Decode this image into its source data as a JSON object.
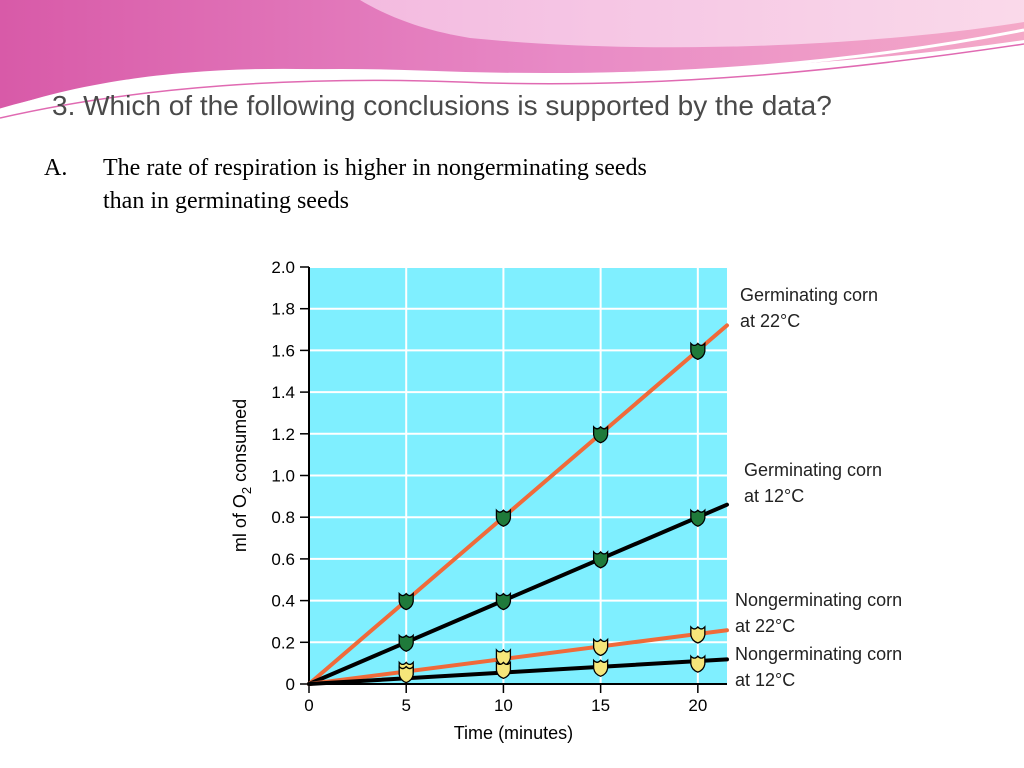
{
  "slide": {
    "question": "3. Which of the following conclusions is supported by the data?",
    "option_letter": "A.",
    "option_line1": "The rate of respiration is higher in nongerminating seeds",
    "option_line2": "than in germinating seeds"
  },
  "colors": {
    "plot_bg": "#7fefff",
    "grid": "#ffffff",
    "orange": "#f06a3a",
    "black": "#000000",
    "green_marker": "#1f7a3a",
    "yellow_marker": "#f5e67a"
  },
  "chart_data": {
    "type": "line",
    "xlabel": "Time (minutes)",
    "ylabel_prefix": "ml of O",
    "ylabel_sub": "2",
    "ylabel_suffix": " consumed",
    "xlim": [
      0,
      21.5
    ],
    "ylim": [
      0,
      2.0
    ],
    "x_ticks": [
      0,
      5,
      10,
      15,
      20
    ],
    "y_ticks": [
      "0",
      "0.2",
      "0.4",
      "0.6",
      "0.8",
      "1.0",
      "1.2",
      "1.4",
      "1.6",
      "1.8",
      "2.0"
    ],
    "grid": true,
    "series": [
      {
        "key": "g22",
        "label_line1": "Germinating corn",
        "label_line2": "at 22°C",
        "color": "#f06a3a",
        "marker": "green",
        "slope": 0.08,
        "points": [
          [
            5,
            0.4
          ],
          [
            10,
            0.8
          ],
          [
            15,
            1.2
          ],
          [
            20,
            1.6
          ]
        ]
      },
      {
        "key": "g12",
        "label_line1": "Germinating corn",
        "label_line2": "at 12°C",
        "color": "#000000",
        "marker": "green",
        "slope": 0.04,
        "points": [
          [
            5,
            0.2
          ],
          [
            10,
            0.4
          ],
          [
            15,
            0.6
          ],
          [
            20,
            0.8
          ]
        ]
      },
      {
        "key": "n22",
        "label_line1": "Nongerminating corn",
        "label_line2": "at 22°C",
        "color": "#f06a3a",
        "marker": "yellow",
        "slope": 0.012,
        "points": [
          [
            5,
            0.07
          ],
          [
            10,
            0.13
          ],
          [
            15,
            0.18
          ],
          [
            20,
            0.24
          ]
        ]
      },
      {
        "key": "n12",
        "label_line1": "Nongerminating corn",
        "label_line2": "at 12°C",
        "color": "#000000",
        "marker": "yellow",
        "slope": 0.0055,
        "points": [
          [
            5,
            0.05
          ],
          [
            10,
            0.07
          ],
          [
            15,
            0.08
          ],
          [
            20,
            0.1
          ]
        ]
      }
    ]
  }
}
